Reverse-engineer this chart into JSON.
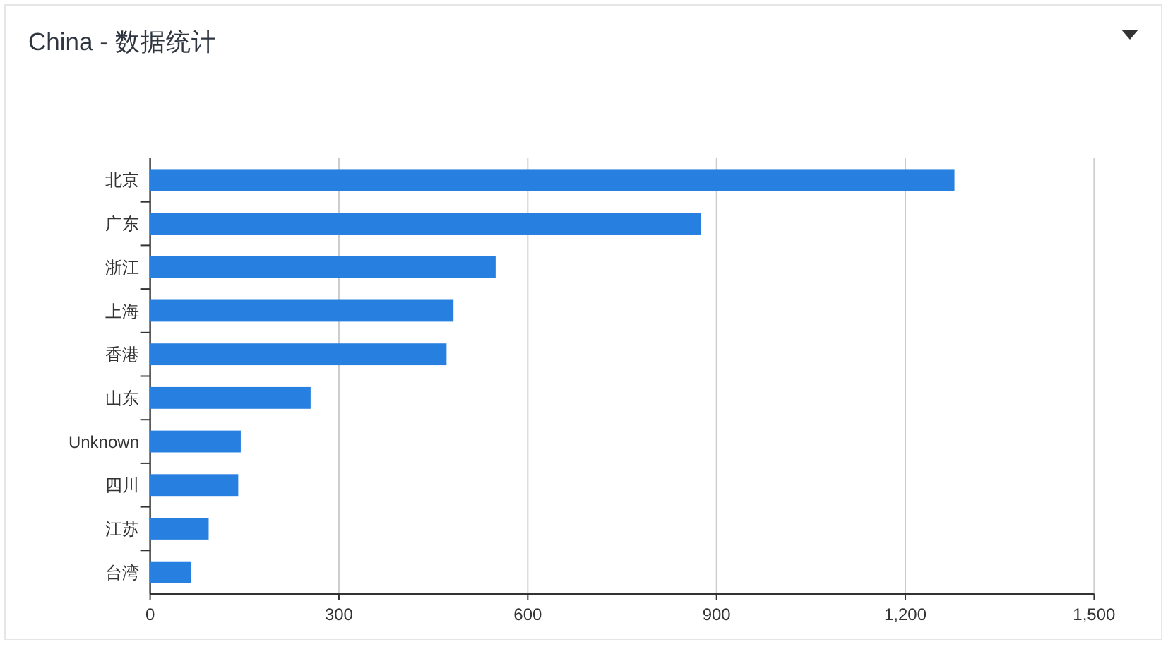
{
  "chart_data": {
    "type": "bar",
    "orientation": "horizontal",
    "title": "China - 数据统计",
    "categories": [
      "北京",
      "广东",
      "浙江",
      "上海",
      "香港",
      "山东",
      "Unknown",
      "四川",
      "江苏",
      "台湾"
    ],
    "values": [
      1278,
      875,
      549,
      482,
      471,
      255,
      144,
      140,
      93,
      65
    ],
    "color": "#277fe0",
    "xlim": [
      0,
      1500
    ],
    "xticks": [
      0,
      300,
      600,
      900,
      {
        "value": 1200,
        "label": "1,200"
      },
      {
        "value": 1500,
        "label": "1,500"
      }
    ],
    "grid": "x"
  }
}
